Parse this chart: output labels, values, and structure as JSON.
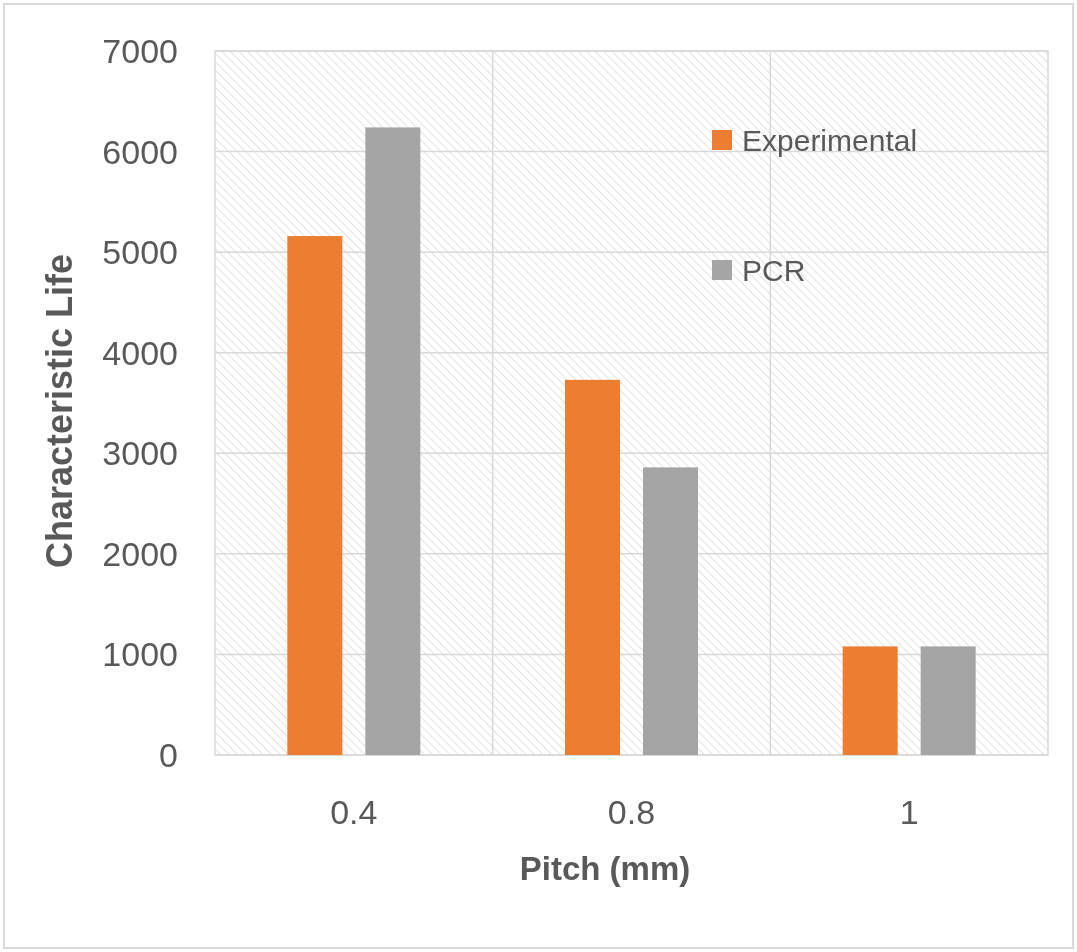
{
  "chart_data": {
    "type": "bar",
    "xlabel": "Pitch (mm)",
    "ylabel": "Characteristic Life",
    "categories": [
      "0.4",
      "0.8",
      "1"
    ],
    "series": [
      {
        "name": "Experimental",
        "color": "#ed7d31",
        "values": [
          5160,
          3730,
          1080
        ]
      },
      {
        "name": "PCR",
        "color": "#a5a5a5",
        "values": [
          6240,
          2860,
          1080
        ]
      }
    ],
    "ylim": [
      0,
      7000
    ],
    "yticks": [
      0,
      1000,
      2000,
      3000,
      4000,
      5000,
      6000,
      7000
    ],
    "grid": true,
    "legend": "top right"
  }
}
